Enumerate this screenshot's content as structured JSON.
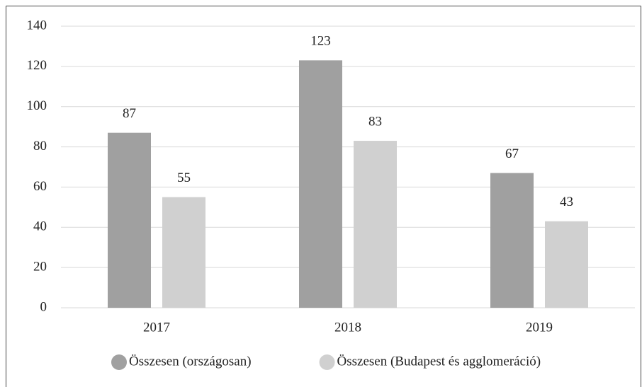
{
  "chart_data": {
    "type": "bar",
    "categories": [
      "2017",
      "2018",
      "2019"
    ],
    "series": [
      {
        "name": "Összesen (országosan)",
        "color": "#a0a0a0",
        "values": [
          87,
          123,
          67
        ]
      },
      {
        "name": "Összesen (Budapest és agglomeráció)",
        "color": "#d0d0d0",
        "values": [
          55,
          83,
          43
        ]
      }
    ],
    "ylim": [
      0,
      140
    ],
    "yticks": [
      0,
      20,
      40,
      60,
      80,
      100,
      120,
      140
    ],
    "grid": true,
    "legend": "bottom"
  }
}
